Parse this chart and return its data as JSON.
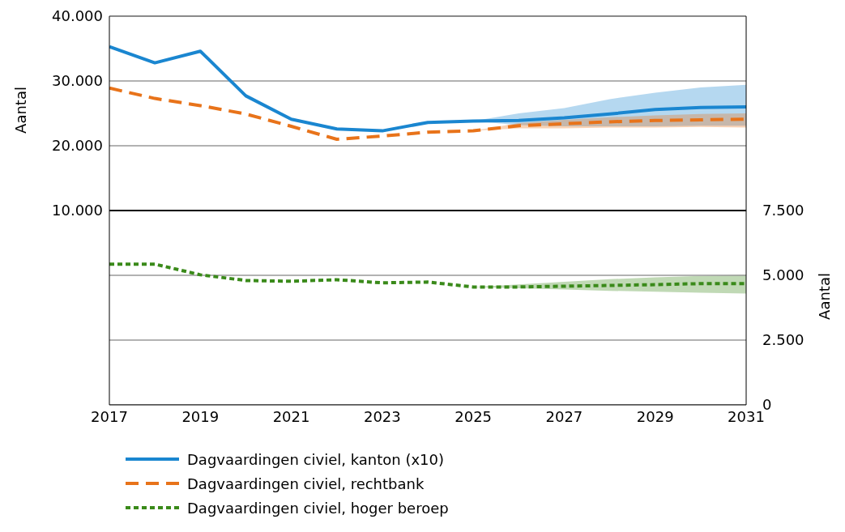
{
  "chart_data": {
    "type": "line",
    "ylabel": "Aantal",
    "y2label": "Aantal",
    "x": [
      2017,
      2018,
      2019,
      2020,
      2021,
      2022,
      2023,
      2024,
      2025,
      2026,
      2027,
      2028,
      2029,
      2030,
      2031
    ],
    "xlim": [
      2017,
      2031
    ],
    "xticks": [
      2017,
      2019,
      2021,
      2023,
      2025,
      2027,
      2029,
      2031
    ],
    "ylim": [
      -20000,
      40000
    ],
    "yticks": [
      {
        "value": 10000,
        "label": "10.000"
      },
      {
        "value": 20000,
        "label": "20.000"
      },
      {
        "value": 30000,
        "label": "30.000"
      },
      {
        "value": 40000,
        "label": "40.000"
      }
    ],
    "y2lim": [
      0,
      15000
    ],
    "y2ticks": [
      {
        "value": 0,
        "label": "0"
      },
      {
        "value": 2500,
        "label": "2.500"
      },
      {
        "value": 5000,
        "label": "5.000"
      },
      {
        "value": 7500,
        "label": "7.500"
      }
    ],
    "grid": "y",
    "legend": "bottom",
    "ref_lines": [
      {
        "axis": "y",
        "value": 10000,
        "color": "#000000"
      }
    ],
    "series": [
      {
        "name": "Dagvaardingen civiel, kanton (x10)",
        "color": "#1a86d0",
        "line_style": "solid",
        "values": [
          35300,
          32800,
          34600,
          27700,
          24100,
          22600,
          22300,
          23600,
          23800,
          23900,
          24300,
          24900,
          25600,
          25900,
          26000
        ],
        "lower": [
          null,
          null,
          null,
          null,
          null,
          null,
          null,
          null,
          23800,
          23200,
          23000,
          23000,
          23000,
          23100,
          23100
        ],
        "upper": [
          null,
          null,
          null,
          null,
          null,
          null,
          null,
          null,
          23800,
          25000,
          25800,
          27200,
          28200,
          29000,
          29400
        ]
      },
      {
        "name": "Dagvaardingen civiel, rechtbank",
        "color": "#e8731a",
        "line_style": "dashed",
        "values": [
          28900,
          27300,
          26200,
          24900,
          23000,
          21000,
          21500,
          22100,
          22300,
          23100,
          23400,
          23700,
          23900,
          24000,
          24100
        ],
        "lower": [
          null,
          null,
          null,
          null,
          null,
          null,
          null,
          null,
          22300,
          22700,
          22700,
          22800,
          22800,
          22900,
          22800
        ],
        "upper": [
          null,
          null,
          null,
          null,
          null,
          null,
          null,
          null,
          22300,
          23500,
          24000,
          24400,
          24700,
          24900,
          25000
        ]
      },
      {
        "name": "Dagvaardingen civiel, hoger beroep",
        "color": "#3a8a1a",
        "line_style": "dotted",
        "axis": "y2",
        "values": [
          5430,
          5430,
          5020,
          4800,
          4770,
          4830,
          4710,
          4740,
          4550,
          4550,
          4580,
          4610,
          4640,
          4680,
          4680
        ],
        "lower": [
          null,
          null,
          null,
          null,
          null,
          null,
          null,
          null,
          4550,
          4500,
          4450,
          4400,
          4370,
          4330,
          4300
        ],
        "upper": [
          null,
          null,
          null,
          null,
          null,
          null,
          null,
          null,
          4550,
          4650,
          4750,
          4850,
          4920,
          4980,
          5020
        ]
      }
    ]
  }
}
